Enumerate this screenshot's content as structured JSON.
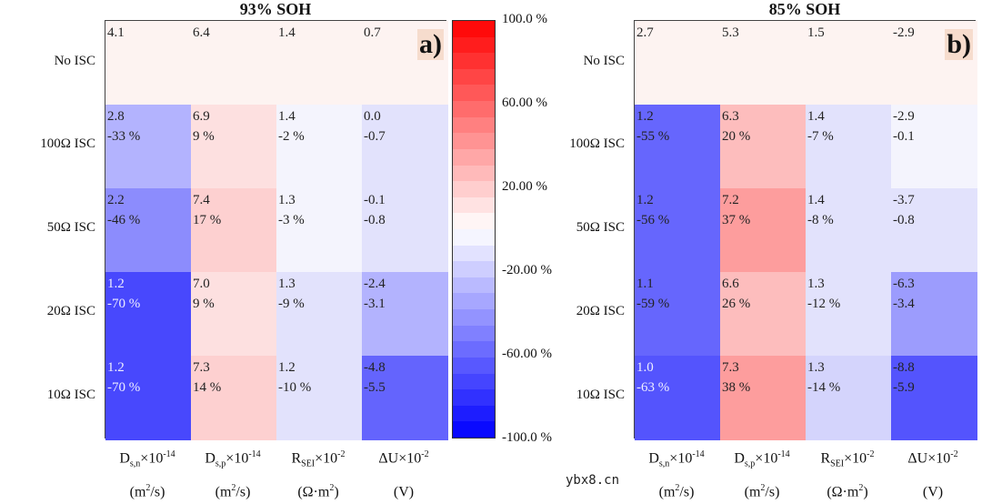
{
  "chart_data": [
    {
      "type": "heatmap",
      "title": "93% SOH",
      "panel_label": "a)",
      "rows": [
        "No ISC",
        "100Ω ISC",
        "50Ω ISC",
        "20Ω ISC",
        "10Ω ISC"
      ],
      "columns": [
        {
          "symbol": "D",
          "sub": "s,n",
          "mult": "×10",
          "exp": "-14",
          "unit_pre": "(m",
          "unit_sup": "2",
          "unit_post": "/s)"
        },
        {
          "symbol": "D",
          "sub": "s,p",
          "mult": "×10",
          "exp": "-14",
          "unit_pre": "(m",
          "unit_sup": "2",
          "unit_post": "/s)"
        },
        {
          "symbol": "R",
          "sub": "SEI",
          "mult": "×10",
          "exp": "-2",
          "unit_pre": "(Ω·m",
          "unit_sup": "2",
          "unit_post": ")"
        },
        {
          "symbol": "ΔU",
          "sub": "",
          "mult": "×10",
          "exp": "-2",
          "unit_pre": "(V)",
          "unit_sup": "",
          "unit_post": ""
        }
      ],
      "cells": [
        [
          {
            "v": "4.1",
            "p": "",
            "c": "#fdf3f1"
          },
          {
            "v": "6.4",
            "p": "",
            "c": "#fdf3f1"
          },
          {
            "v": "1.4",
            "p": "",
            "c": "#fdf3f1"
          },
          {
            "v": "0.7",
            "p": "",
            "c": "#fdf3f1"
          }
        ],
        [
          {
            "v": "2.8",
            "p": "-33 %",
            "c": "#b3b3fe"
          },
          {
            "v": "6.9",
            "p": "9 %",
            "c": "#fde0e0"
          },
          {
            "v": "1.4",
            "p": "-2 %",
            "c": "#f4f4fd"
          },
          {
            "v": "0.0",
            "p": "-0.7",
            "c": "#e2e2fc"
          }
        ],
        [
          {
            "v": "2.2",
            "p": "-46 %",
            "c": "#8c8cfd"
          },
          {
            "v": "7.4",
            "p": "17 %",
            "c": "#fdd0d0"
          },
          {
            "v": "1.3",
            "p": "-3 %",
            "c": "#f4f4fd"
          },
          {
            "v": "-0.1",
            "p": "-0.8",
            "c": "#e2e2fc"
          }
        ],
        [
          {
            "v": "1.2",
            "p": "-70 %",
            "c": "#4848fd",
            "light": true
          },
          {
            "v": "7.0",
            "p": "9 %",
            "c": "#fde0e0"
          },
          {
            "v": "1.3",
            "p": "-9 %",
            "c": "#e2e2fc"
          },
          {
            "v": "-2.4",
            "p": "-3.1",
            "c": "#b3b3fe"
          }
        ],
        [
          {
            "v": "1.2",
            "p": "-70 %",
            "c": "#4848fd",
            "light": true
          },
          {
            "v": "7.3",
            "p": "14 %",
            "c": "#fdd0d0"
          },
          {
            "v": "1.2",
            "p": "-10 %",
            "c": "#e2e2fc"
          },
          {
            "v": "-4.8",
            "p": "-5.5",
            "c": "#6464fd"
          }
        ]
      ]
    },
    {
      "type": "heatmap",
      "title": "85% SOH",
      "panel_label": "b)",
      "rows": [
        "No ISC",
        "100Ω ISC",
        "50Ω ISC",
        "20Ω ISC",
        "10Ω ISC"
      ],
      "columns": [
        {
          "symbol": "D",
          "sub": "s,n",
          "mult": "×10",
          "exp": "-14",
          "unit_pre": "(m",
          "unit_sup": "2",
          "unit_post": "/s)"
        },
        {
          "symbol": "D",
          "sub": "s,p",
          "mult": "×10",
          "exp": "-14",
          "unit_pre": "(m",
          "unit_sup": "2",
          "unit_post": "/s)"
        },
        {
          "symbol": "R",
          "sub": "SEI",
          "mult": "×10",
          "exp": "-2",
          "unit_pre": "(Ω·m",
          "unit_sup": "2",
          "unit_post": ")"
        },
        {
          "symbol": "ΔU",
          "sub": "",
          "mult": "×10",
          "exp": "-2",
          "unit_pre": "(V)",
          "unit_sup": "",
          "unit_post": ""
        }
      ],
      "cells": [
        [
          {
            "v": "2.7",
            "p": "",
            "c": "#fdf3f1"
          },
          {
            "v": "5.3",
            "p": "",
            "c": "#fdf3f1"
          },
          {
            "v": "1.5",
            "p": "",
            "c": "#fdf3f1"
          },
          {
            "v": "-2.9",
            "p": "",
            "c": "#fdf3f1"
          }
        ],
        [
          {
            "v": "1.2",
            "p": "-55 %",
            "c": "#6666fd"
          },
          {
            "v": "6.3",
            "p": "20 %",
            "c": "#fdbdbd"
          },
          {
            "v": "1.4",
            "p": "-7 %",
            "c": "#e2e2fc"
          },
          {
            "v": "-2.9",
            "p": "-0.1",
            "c": "#f4f4fd"
          }
        ],
        [
          {
            "v": "1.2",
            "p": "-56 %",
            "c": "#6666fd"
          },
          {
            "v": "7.2",
            "p": "37 %",
            "c": "#fd9d9d"
          },
          {
            "v": "1.4",
            "p": "-8 %",
            "c": "#e2e2fc"
          },
          {
            "v": "-3.7",
            "p": "-0.8",
            "c": "#e2e2fc"
          }
        ],
        [
          {
            "v": "1.1",
            "p": "-59 %",
            "c": "#6666fd"
          },
          {
            "v": "6.6",
            "p": "26 %",
            "c": "#fdbdbd"
          },
          {
            "v": "1.3",
            "p": "-12 %",
            "c": "#e2e2fc"
          },
          {
            "v": "-6.3",
            "p": "-3.4",
            "c": "#9c9cfd"
          }
        ],
        [
          {
            "v": "1.0",
            "p": "-63 %",
            "c": "#5454fd",
            "light": true
          },
          {
            "v": "7.3",
            "p": "38 %",
            "c": "#fd9d9d"
          },
          {
            "v": "1.3",
            "p": "-14 %",
            "c": "#d4d4fc"
          },
          {
            "v": "-8.8",
            "p": "-5.9",
            "c": "#5454fd"
          }
        ]
      ]
    }
  ],
  "colorbar": {
    "range": [
      -100,
      100
    ],
    "ticks": [
      "100.0 %",
      "60.00 %",
      "20.00 %",
      "-20.00 %",
      "-60.00 %",
      "-100.0 %"
    ],
    "tick_values": [
      100,
      60,
      20,
      -20,
      -60,
      -100
    ],
    "max_color": "#ff0000",
    "mid_color": "#ffffff",
    "min_color": "#0000ff"
  },
  "watermark": "ybx8.cn"
}
